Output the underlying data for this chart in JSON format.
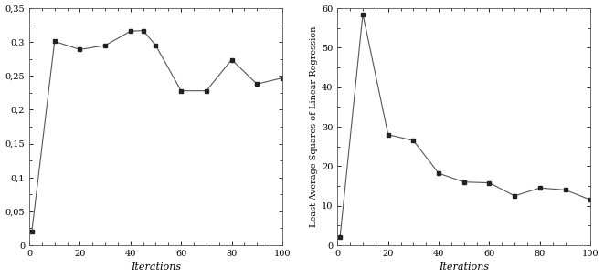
{
  "plot1": {
    "x": [
      1,
      10,
      20,
      30,
      40,
      45,
      50,
      60,
      70,
      80,
      90,
      100
    ],
    "y": [
      0.02,
      0.301,
      0.289,
      0.295,
      0.316,
      0.317,
      0.295,
      0.228,
      0.228,
      0.274,
      0.238,
      0.247
    ],
    "xlabel": "Iterations",
    "ylabel": "",
    "xlim": [
      0,
      100
    ],
    "ylim": [
      0,
      0.35
    ],
    "yticks": [
      0,
      0.05,
      0.1,
      0.15,
      0.2,
      0.25,
      0.3,
      0.35
    ],
    "ytick_labels": [
      "0",
      "0,05",
      "0,1",
      "0,15",
      "0,2",
      "0,25",
      "0,3",
      "0,35"
    ],
    "xticks": [
      0,
      20,
      40,
      60,
      80,
      100
    ]
  },
  "plot2": {
    "x": [
      1,
      10,
      20,
      30,
      40,
      50,
      60,
      70,
      80,
      90,
      100
    ],
    "y": [
      2.0,
      58.5,
      28.0,
      26.5,
      18.2,
      16.0,
      15.8,
      12.5,
      14.5,
      14.0,
      11.5
    ],
    "xlabel": "Iterations",
    "ylabel": "Least Average Squares of Linear Regression",
    "xlim": [
      0,
      100
    ],
    "ylim": [
      0,
      60
    ],
    "yticks": [
      0,
      10,
      20,
      30,
      40,
      50,
      60
    ],
    "xticks": [
      0,
      20,
      40,
      60,
      80,
      100
    ]
  },
  "line_color": "#555555",
  "marker": "s",
  "marker_size": 3.5,
  "marker_color": "#222222",
  "linewidth": 0.8,
  "bg_color": "#ffffff",
  "fig_bg_color": "#ffffff"
}
